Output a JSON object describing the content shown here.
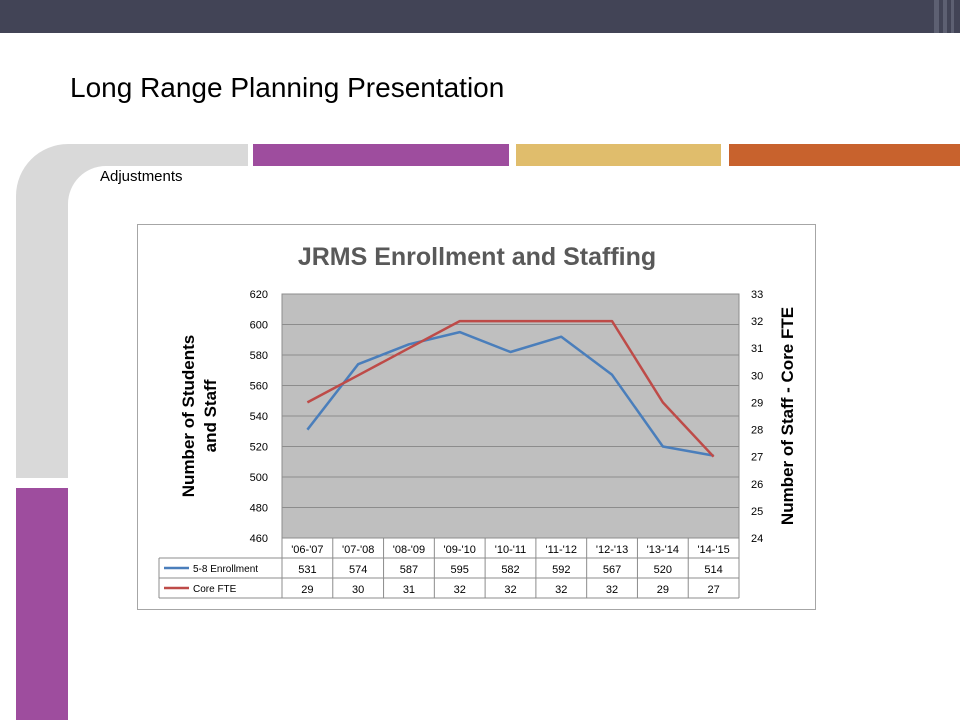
{
  "slide": {
    "title": "Long Range Planning Presentation",
    "subtitle": "Adjustments"
  },
  "colors": {
    "top_bar": "#424456",
    "accent_purple": "#9e4d9e",
    "accent_gold": "#e0bd6c",
    "accent_orange": "#c8622d",
    "bracket_gray": "#d9d9d9"
  },
  "chart_data": {
    "type": "line",
    "title": "JRMS Enrollment and Staffing",
    "ylabel_left": [
      "Number of Students",
      "and  Staff"
    ],
    "ylabel_right": "Number of Staff - Core FTE",
    "categories": [
      "'06-'07",
      "'07-'08",
      "'08-'09",
      "'09-'10",
      "'10-'11",
      "'11-'12",
      "'12-'13",
      "'13-'14",
      "'14-'15"
    ],
    "ylim_left": [
      460,
      620
    ],
    "yticks_left": [
      "620",
      "600",
      "580",
      "560",
      "540",
      "520",
      "500",
      "480",
      "460"
    ],
    "ylim_right": [
      24,
      33
    ],
    "yticks_right": [
      "33",
      "32",
      "31",
      "30",
      "29",
      "28",
      "27",
      "26",
      "25",
      "24"
    ],
    "grid": "horizontal",
    "legend": "data table",
    "series": [
      {
        "name": "5-8 Enrollment",
        "axis": "left",
        "color": "#4a7ebb",
        "values": [
          531,
          574,
          587,
          595,
          582,
          592,
          567,
          520,
          514
        ],
        "value_labels": [
          "531",
          "574",
          "587",
          "595",
          "582",
          "592",
          "567",
          "520",
          "514"
        ]
      },
      {
        "name": "Core FTE",
        "axis": "right",
        "color": "#be4b48",
        "values": [
          29,
          30,
          31,
          32,
          32,
          32,
          32,
          29,
          27
        ],
        "value_labels": [
          "29",
          "30",
          "31",
          "32",
          "32",
          "32",
          "32",
          "29",
          "27"
        ]
      }
    ]
  }
}
